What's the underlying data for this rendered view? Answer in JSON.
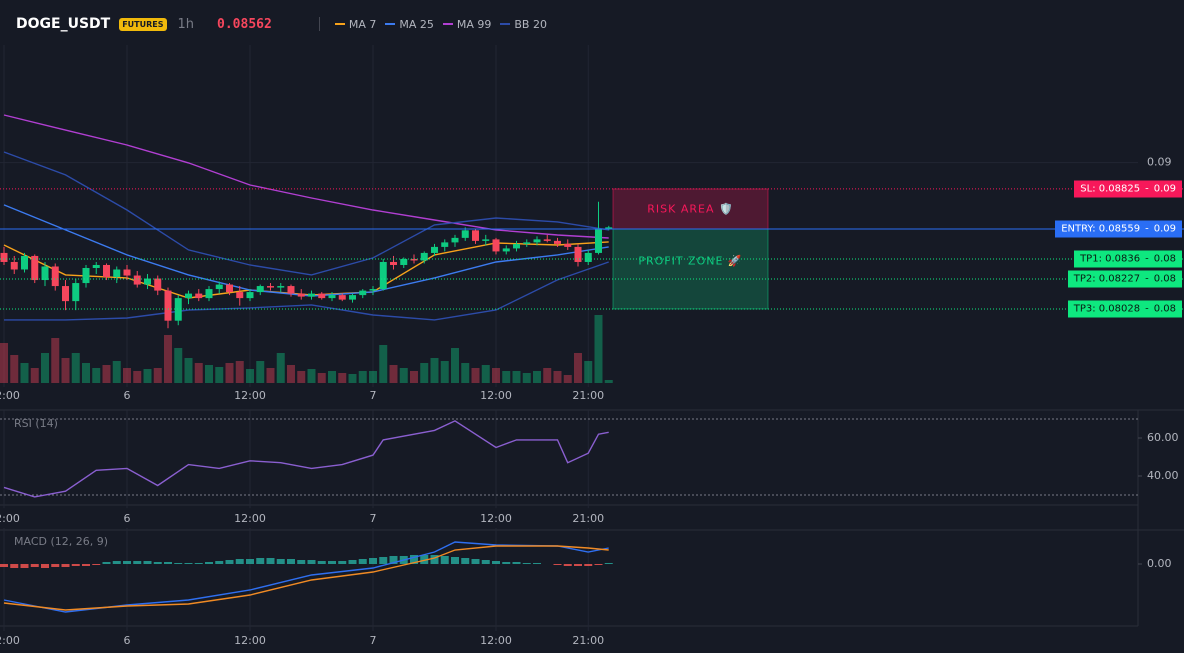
{
  "header": {
    "symbol": "DOGE_USDT",
    "badge": "FUTURES",
    "interval": "1h",
    "price": 0.08562
  },
  "chart_data": [
    {
      "type": "candlestick",
      "xlim": [
        -0.39,
        110.83
      ],
      "ylim": [
        0.07523,
        0.09814
      ],
      "yticks": [
        0.09
      ],
      "xticks": [
        {
          "value": 0,
          "label": "12:00"
        },
        {
          "value": 12,
          "label": "6"
        },
        {
          "value": 24,
          "label": "12:00"
        },
        {
          "value": 36,
          "label": "7"
        },
        {
          "value": 48,
          "label": "12:00"
        },
        {
          "value": 57,
          "label": "21:00"
        }
      ],
      "up_color": "#0ecb81",
      "down_color": "#f6465d",
      "ohlc": [
        [
          0.084,
          0.0844,
          0.0832,
          0.0834
        ],
        [
          0.0834,
          0.0838,
          0.0826,
          0.0829
        ],
        [
          0.0829,
          0.084,
          0.0827,
          0.0838
        ],
        [
          0.0838,
          0.0839,
          0.082,
          0.0822
        ],
        [
          0.0822,
          0.0834,
          0.0818,
          0.0831
        ],
        [
          0.0831,
          0.0833,
          0.0815,
          0.0818
        ],
        [
          0.0818,
          0.0822,
          0.0802,
          0.0808
        ],
        [
          0.0808,
          0.0823,
          0.0802,
          0.082
        ],
        [
          0.082,
          0.0832,
          0.0817,
          0.083
        ],
        [
          0.083,
          0.0834,
          0.0826,
          0.0832
        ],
        [
          0.0832,
          0.0833,
          0.0822,
          0.0824
        ],
        [
          0.0824,
          0.0831,
          0.082,
          0.0829
        ],
        [
          0.0829,
          0.0832,
          0.0822,
          0.0825
        ],
        [
          0.0825,
          0.0828,
          0.0817,
          0.0819
        ],
        [
          0.0819,
          0.0826,
          0.0816,
          0.0823
        ],
        [
          0.0823,
          0.0825,
          0.0812,
          0.0815
        ],
        [
          0.0815,
          0.0817,
          0.079,
          0.0795
        ],
        [
          0.0795,
          0.0812,
          0.0792,
          0.081
        ],
        [
          0.081,
          0.0815,
          0.0806,
          0.0813
        ],
        [
          0.0813,
          0.0816,
          0.0808,
          0.081
        ],
        [
          0.081,
          0.0818,
          0.0808,
          0.0816
        ],
        [
          0.0816,
          0.0821,
          0.0813,
          0.0819
        ],
        [
          0.0819,
          0.082,
          0.0812,
          0.0814
        ],
        [
          0.0814,
          0.0818,
          0.0805,
          0.081
        ],
        [
          0.081,
          0.0816,
          0.0808,
          0.0814
        ],
        [
          0.0814,
          0.0819,
          0.0812,
          0.0818
        ],
        [
          0.0818,
          0.082,
          0.0815,
          0.0817
        ],
        [
          0.0817,
          0.082,
          0.0814,
          0.0818
        ],
        [
          0.0818,
          0.0819,
          0.0811,
          0.0813
        ],
        [
          0.0813,
          0.0816,
          0.0809,
          0.0811
        ],
        [
          0.0811,
          0.0815,
          0.0809,
          0.0813
        ],
        [
          0.0813,
          0.0814,
          0.0809,
          0.081
        ],
        [
          0.081,
          0.0814,
          0.0808,
          0.0812
        ],
        [
          0.0812,
          0.0813,
          0.0808,
          0.0809
        ],
        [
          0.0809,
          0.0813,
          0.0807,
          0.0812
        ],
        [
          0.0812,
          0.0816,
          0.081,
          0.0815
        ],
        [
          0.0815,
          0.0818,
          0.0812,
          0.0816
        ],
        [
          0.0816,
          0.0836,
          0.0815,
          0.0834
        ],
        [
          0.0834,
          0.0838,
          0.0829,
          0.0832
        ],
        [
          0.0832,
          0.0837,
          0.083,
          0.0836
        ],
        [
          0.0836,
          0.0839,
          0.0833,
          0.0835
        ],
        [
          0.0835,
          0.0841,
          0.0833,
          0.084
        ],
        [
          0.084,
          0.0846,
          0.0838,
          0.0844
        ],
        [
          0.0844,
          0.0849,
          0.0841,
          0.0847
        ],
        [
          0.0847,
          0.0852,
          0.0844,
          0.085
        ],
        [
          0.085,
          0.0857,
          0.0848,
          0.0855
        ],
        [
          0.0855,
          0.0856,
          0.0846,
          0.0848
        ],
        [
          0.0848,
          0.0852,
          0.0845,
          0.0849
        ],
        [
          0.0849,
          0.085,
          0.0839,
          0.0841
        ],
        [
          0.0841,
          0.0845,
          0.0839,
          0.0843
        ],
        [
          0.0843,
          0.0848,
          0.0841,
          0.0846
        ],
        [
          0.0846,
          0.0849,
          0.0844,
          0.0847
        ],
        [
          0.0847,
          0.0851,
          0.0845,
          0.0849
        ],
        [
          0.0849,
          0.0852,
          0.0847,
          0.0848
        ],
        [
          0.0848,
          0.085,
          0.0844,
          0.0846
        ],
        [
          0.0846,
          0.0849,
          0.0842,
          0.0844
        ],
        [
          0.0844,
          0.0846,
          0.0831,
          0.0834
        ],
        [
          0.0834,
          0.0842,
          0.0832,
          0.084
        ],
        [
          0.084,
          0.0874,
          0.0839,
          0.0856
        ],
        [
          0.0856,
          0.0858,
          0.0855,
          0.0857
        ]
      ],
      "vlim": [
        0,
        68
      ],
      "volume": [
        40,
        28,
        20,
        15,
        30,
        45,
        25,
        30,
        20,
        15,
        18,
        22,
        15,
        12,
        14,
        15,
        48,
        35,
        25,
        20,
        18,
        16,
        20,
        22,
        14,
        22,
        15,
        30,
        18,
        12,
        14,
        10,
        12,
        10,
        9,
        12,
        12,
        38,
        18,
        15,
        12,
        20,
        25,
        22,
        35,
        20,
        15,
        18,
        15,
        12,
        12,
        10,
        12,
        15,
        12,
        8,
        30,
        22,
        68,
        3
      ],
      "series": [
        {
          "name": "MA 7",
          "color": "#f7a21b",
          "x": [
            0,
            6,
            12,
            18,
            24,
            30,
            36,
            42,
            48,
            54,
            59
          ],
          "values": [
            0.08453,
            0.08254,
            0.08234,
            0.08101,
            0.08154,
            0.08121,
            0.08141,
            0.08387,
            0.08466,
            0.08453,
            0.08473
          ]
        },
        {
          "name": "MA 25",
          "color": "#3c7bf0",
          "x": [
            0,
            6,
            12,
            18,
            24,
            30,
            36,
            42,
            48,
            54,
            59
          ],
          "values": [
            0.08719,
            0.08553,
            0.08387,
            0.08254,
            0.08154,
            0.08114,
            0.08141,
            0.08234,
            0.0834,
            0.08387,
            0.0844
          ]
        },
        {
          "name": "MA 99",
          "color": "#b13fd2",
          "x": [
            0,
            6,
            12,
            18,
            24,
            30,
            36,
            42,
            48,
            54,
            59
          ],
          "values": [
            0.09316,
            0.09216,
            0.09117,
            0.08998,
            0.08851,
            0.08765,
            0.08685,
            0.08619,
            0.08553,
            0.08519,
            0.08499
          ]
        },
        {
          "name": "BB 20",
          "color": "#2c4ba8",
          "x": [
            0,
            6,
            12,
            18,
            24,
            30,
            36,
            42,
            48,
            54,
            59
          ],
          "values": [
            0.0907,
            0.08918,
            0.08685,
            0.0842,
            0.0832,
            0.08254,
            0.08367,
            0.08586,
            0.08632,
            0.08606,
            0.08553
          ],
          "lower": [
            0.07955,
            0.07955,
            0.07968,
            0.08021,
            0.08035,
            0.08055,
            0.07988,
            0.07955,
            0.08021,
            0.08221,
            0.0834
          ]
        }
      ],
      "separator": "-",
      "levels": [
        {
          "label": "SL: 0.08825",
          "value": 0.08825,
          "price_label": "0.09",
          "color": "#f7185a",
          "text_color": "#ffffff",
          "line_style": "dotted"
        },
        {
          "label": "ENTRY: 0.08559",
          "value": 0.08559,
          "price_label": "0.09",
          "color": "#2a6ef5",
          "text_color": "#ffffff",
          "line_style": "solid"
        },
        {
          "label": "TP1: 0.0836",
          "value": 0.0836,
          "price_label": "0.08",
          "color": "#0ee87f",
          "text_color": "#0b1a12",
          "line_style": "dotted"
        },
        {
          "label": "TP2: 0.08227",
          "value": 0.08227,
          "price_label": "0.08",
          "color": "#0ee87f",
          "text_color": "#0b1a12",
          "line_style": "dotted"
        },
        {
          "label": "TP3: 0.08028",
          "value": 0.08028,
          "price_label": "0.08",
          "color": "#0ee87f",
          "text_color": "#0b1a12",
          "line_style": "dotted"
        }
      ],
      "zones": [
        {
          "label": "RISK AREA 🛡️",
          "color": "#f7185a"
        },
        {
          "label": "PROFIT ZONE 🚀",
          "color": "#0ecb81"
        }
      ]
    },
    {
      "type": "line",
      "title": "RSI (14)",
      "xlim": [
        -0.39,
        110.83
      ],
      "ylim": [
        22,
        72
      ],
      "xticks": [
        {
          "value": 0,
          "label": "12:00"
        },
        {
          "value": 12,
          "label": "6"
        },
        {
          "value": 24,
          "label": "12:00"
        },
        {
          "value": 36,
          "label": "7"
        },
        {
          "value": 48,
          "label": "12:00"
        },
        {
          "value": 57,
          "label": "21:00"
        }
      ],
      "yticks": [
        {
          "value": 60,
          "label": "60.00"
        },
        {
          "value": 40,
          "label": "40.00"
        }
      ],
      "levels": [
        70,
        30
      ],
      "series": [
        {
          "color": "#8a5fd0",
          "x": [
            0,
            3,
            6,
            9,
            12,
            15,
            18,
            21,
            24,
            27,
            30,
            33,
            36,
            37,
            42,
            44,
            48,
            50,
            54,
            55,
            57,
            58,
            59
          ],
          "values": [
            34,
            29,
            32,
            43,
            44,
            35,
            46,
            44,
            48,
            47,
            44,
            46,
            51,
            59,
            64,
            69,
            55,
            59,
            59,
            47,
            52,
            62,
            63
          ]
        }
      ]
    },
    {
      "type": "macd",
      "title": "MACD (12, 26, 9)",
      "xlim": [
        -0.39,
        110.83
      ],
      "ylim": [
        -69,
        31
      ],
      "xticks": [
        {
          "value": 0,
          "label": "12:00"
        },
        {
          "value": 12,
          "label": "6"
        },
        {
          "value": 24,
          "label": "12:00"
        },
        {
          "value": 36,
          "label": "7"
        },
        {
          "value": 48,
          "label": "12:00"
        },
        {
          "value": 57,
          "label": "21:00"
        }
      ],
      "yticks": [
        {
          "value": 0,
          "label": "0.00"
        }
      ],
      "up_color": "#26a69a",
      "down_color": "#ef5350",
      "histogram": [
        -3,
        -4,
        -4,
        -3,
        -4,
        -3,
        -3,
        -2,
        -2,
        -1,
        2,
        3,
        3,
        3,
        3,
        2,
        2,
        1,
        1,
        1,
        2,
        3,
        4,
        5,
        5,
        6,
        6,
        5,
        5,
        4,
        4,
        3,
        3,
        3,
        4,
        5,
        6,
        7,
        8,
        8,
        9,
        9,
        9,
        8,
        7,
        6,
        5,
        4,
        3,
        2,
        2,
        1,
        1,
        0,
        -1,
        -2,
        -2,
        -2,
        -1,
        1
      ],
      "series": [
        {
          "color": "#2f6ff0",
          "x": [
            0,
            6,
            12,
            18,
            24,
            30,
            36,
            42,
            44,
            48,
            54,
            57,
            59
          ],
          "values": [
            -36,
            -48,
            -41,
            -36,
            -26,
            -11,
            -4,
            12,
            22,
            19,
            18,
            12,
            16
          ]
        },
        {
          "color": "#f08a24",
          "x": [
            0,
            6,
            12,
            18,
            24,
            30,
            36,
            42,
            44,
            48,
            54,
            57,
            59
          ],
          "values": [
            -39,
            -46,
            -42,
            -40,
            -31,
            -16,
            -8,
            6,
            14,
            18,
            18,
            16,
            14
          ]
        }
      ]
    }
  ]
}
